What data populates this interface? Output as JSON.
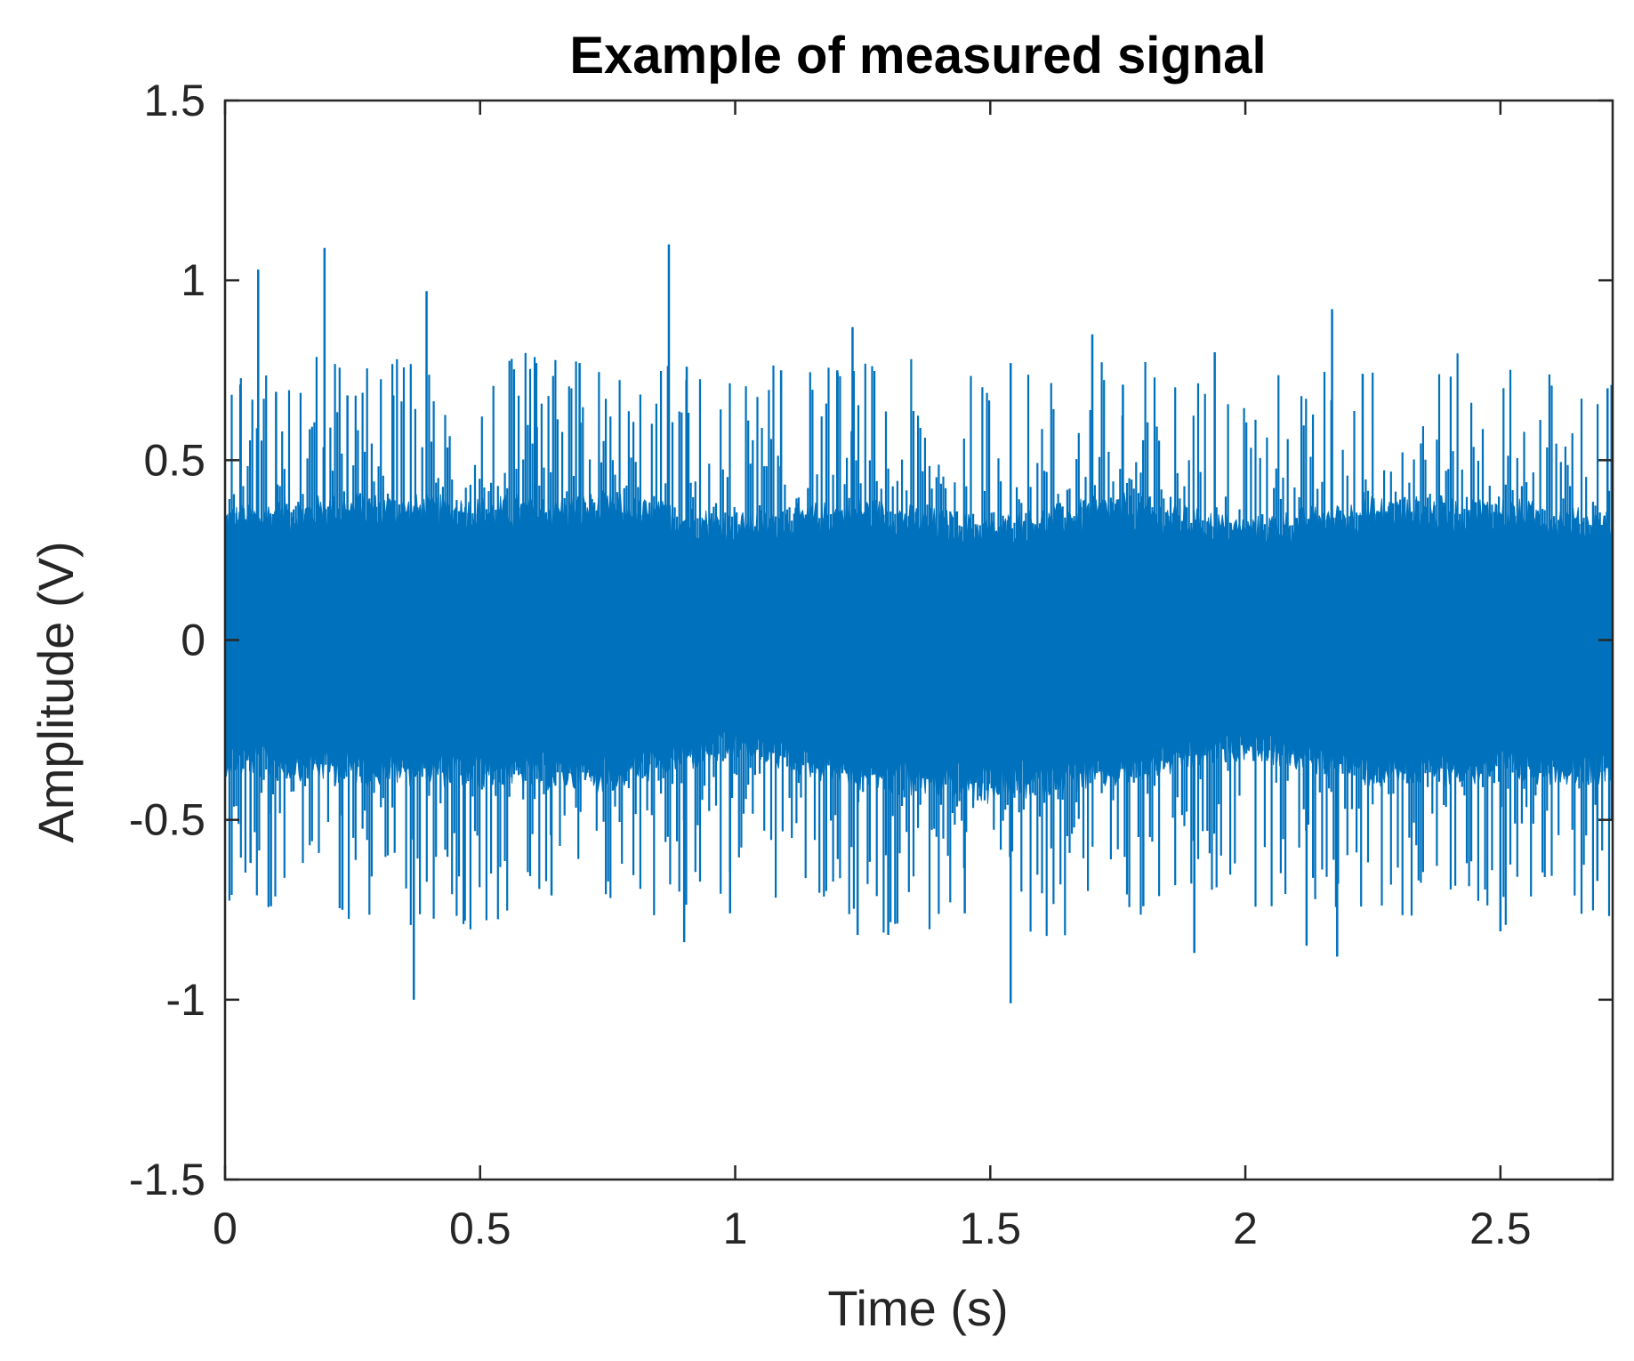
{
  "chart_data": {
    "type": "line",
    "title": "Example of measured signal",
    "xlabel": "Time (s)",
    "ylabel": "Amplitude (V)",
    "xlim": [
      0,
      2.72
    ],
    "ylim": [
      -1.5,
      1.5
    ],
    "x_ticks": [
      0,
      0.5,
      1,
      1.5,
      2,
      2.5
    ],
    "x_tick_labels": [
      "0",
      "0.5",
      "1",
      "1.5",
      "2",
      "2.5"
    ],
    "y_ticks": [
      1.5,
      1,
      0.5,
      0,
      -0.5,
      -1,
      -1.5
    ],
    "y_tick_labels": [
      "1.5",
      "1",
      "0.5",
      "0",
      "-0.5",
      "-1",
      "-1.5"
    ],
    "grid": false,
    "legend": "none",
    "series": [
      {
        "color": "#0072BD",
        "description": "dense noise-like signal centered at 0 V, bulk envelope roughly ±0.35 V",
        "envelope": {
          "x": [
            0,
            0.25,
            0.5,
            0.75,
            1.0,
            1.25,
            1.5,
            1.75,
            2.0,
            2.25,
            2.5,
            2.72
          ],
          "upper": [
            0.33,
            0.36,
            0.35,
            0.36,
            0.31,
            0.35,
            0.3,
            0.36,
            0.3,
            0.35,
            0.35,
            0.31
          ],
          "lower": [
            -0.33,
            -0.35,
            -0.36,
            -0.37,
            -0.29,
            -0.37,
            -0.4,
            -0.36,
            -0.29,
            -0.36,
            -0.35,
            -0.35
          ]
        },
        "peaks": [
          {
            "x": 0.03,
            "y": 0.71
          },
          {
            "x": 0.065,
            "y": 1.03
          },
          {
            "x": 0.1,
            "y": 0.69
          },
          {
            "x": 0.195,
            "y": 1.09
          },
          {
            "x": 0.24,
            "y": 0.68
          },
          {
            "x": 0.33,
            "y": 0.68
          },
          {
            "x": 0.395,
            "y": 0.97
          },
          {
            "x": 0.61,
            "y": 0.77
          },
          {
            "x": 0.695,
            "y": 0.77
          },
          {
            "x": 0.87,
            "y": 1.1
          },
          {
            "x": 0.905,
            "y": 0.76
          },
          {
            "x": 1.09,
            "y": 0.75
          },
          {
            "x": 1.2,
            "y": 0.75
          },
          {
            "x": 1.23,
            "y": 0.87
          },
          {
            "x": 1.54,
            "y": 0.77
          },
          {
            "x": 1.7,
            "y": 0.85
          },
          {
            "x": 1.76,
            "y": 0.71
          },
          {
            "x": 1.94,
            "y": 0.8
          },
          {
            "x": 2.17,
            "y": 0.92
          },
          {
            "x": 2.23,
            "y": 0.74
          },
          {
            "x": 2.71,
            "y": 0.7
          }
        ],
        "troughs": [
          {
            "x": 0.05,
            "y": -0.62
          },
          {
            "x": 0.09,
            "y": -0.74
          },
          {
            "x": 0.23,
            "y": -0.75
          },
          {
            "x": 0.37,
            "y": -1.0
          },
          {
            "x": 0.47,
            "y": -0.78
          },
          {
            "x": 0.64,
            "y": -0.71
          },
          {
            "x": 0.9,
            "y": -0.84
          },
          {
            "x": 0.99,
            "y": -0.76
          },
          {
            "x": 1.24,
            "y": -0.82
          },
          {
            "x": 1.3,
            "y": -0.82
          },
          {
            "x": 1.45,
            "y": -0.76
          },
          {
            "x": 1.54,
            "y": -1.01
          },
          {
            "x": 1.8,
            "y": -0.74
          },
          {
            "x": 1.9,
            "y": -0.87
          },
          {
            "x": 2.12,
            "y": -0.85
          },
          {
            "x": 2.18,
            "y": -0.88
          },
          {
            "x": 2.5,
            "y": -0.81
          },
          {
            "x": 2.69,
            "y": -0.67
          }
        ]
      }
    ]
  }
}
